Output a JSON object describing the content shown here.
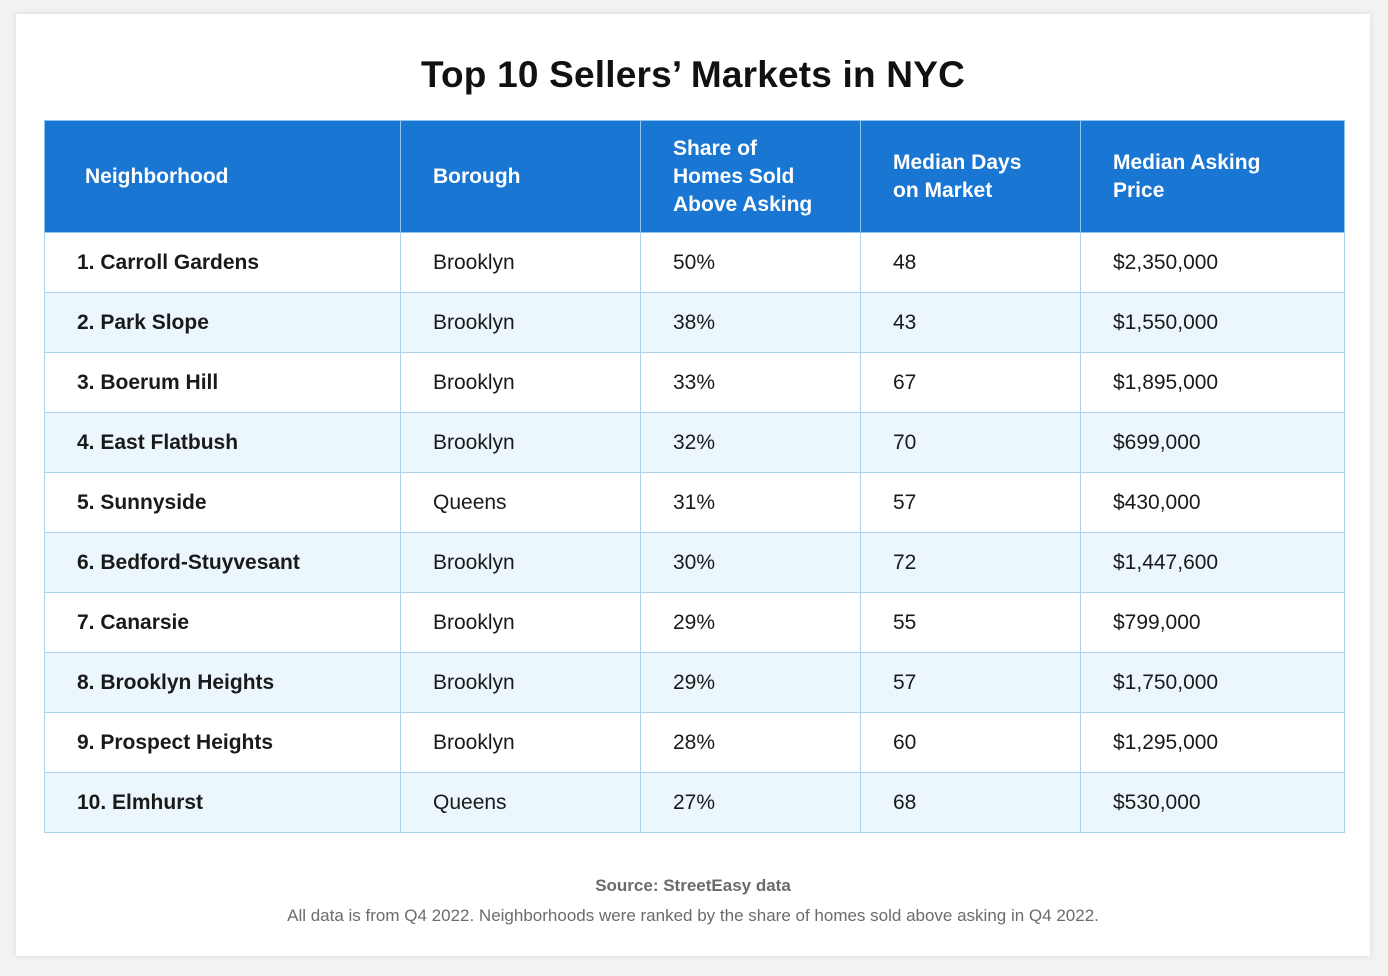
{
  "title": "Top 10 Sellers’ Markets in NYC",
  "columns": [
    "Neighborhood",
    "Borough",
    "Share of\nHomes Sold\nAbove Asking",
    "Median Days\non Market",
    "Median Asking\nPrice"
  ],
  "rows": [
    {
      "neighborhood": "1. Carroll Gardens",
      "borough": "Brooklyn",
      "share": "50%",
      "days": "48",
      "price": "$2,350,000"
    },
    {
      "neighborhood": "2. Park Slope",
      "borough": "Brooklyn",
      "share": "38%",
      "days": "43",
      "price": "$1,550,000"
    },
    {
      "neighborhood": "3. Boerum Hill",
      "borough": "Brooklyn",
      "share": "33%",
      "days": "67",
      "price": "$1,895,000"
    },
    {
      "neighborhood": "4. East Flatbush",
      "borough": "Brooklyn",
      "share": "32%",
      "days": "70",
      "price": "$699,000"
    },
    {
      "neighborhood": "5. Sunnyside",
      "borough": "Queens",
      "share": "31%",
      "days": "57",
      "price": "$430,000"
    },
    {
      "neighborhood": "6. Bedford-Stuyvesant",
      "borough": "Brooklyn",
      "share": "30%",
      "days": "72",
      "price": "$1,447,600"
    },
    {
      "neighborhood": "7. Canarsie",
      "borough": "Brooklyn",
      "share": "29%",
      "days": "55",
      "price": "$799,000"
    },
    {
      "neighborhood": "8. Brooklyn Heights",
      "borough": "Brooklyn",
      "share": "29%",
      "days": "57",
      "price": "$1,750,000"
    },
    {
      "neighborhood": "9. Prospect Heights",
      "borough": "Brooklyn",
      "share": "28%",
      "days": "60",
      "price": "$1,295,000"
    },
    {
      "neighborhood": "10. Elmhurst",
      "borough": "Queens",
      "share": "27%",
      "days": "68",
      "price": "$530,000"
    }
  ],
  "source": "Source: StreetEasy data",
  "note": "All data is from Q4 2022. Neighborhoods were ranked by the share of homes sold above asking in Q4 2022.",
  "colors": {
    "header_bg": "#1976d2",
    "row_alt_bg": "#ebf7fd",
    "border": "#a9d3ef"
  }
}
